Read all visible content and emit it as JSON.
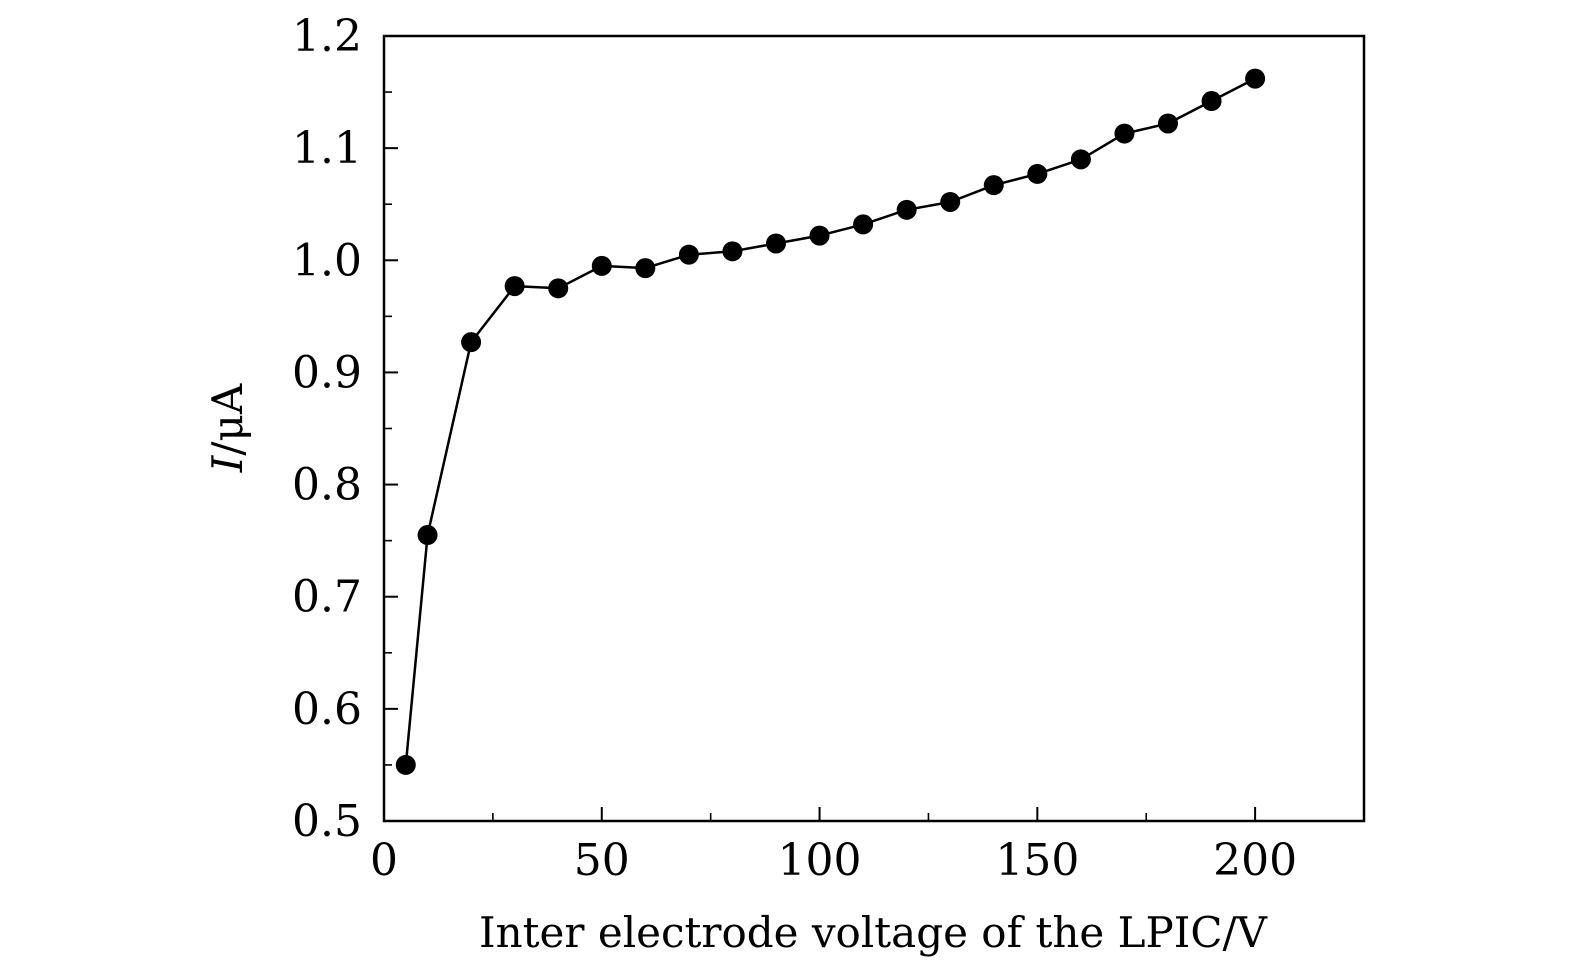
{
  "chart_data": {
    "type": "line",
    "title": "",
    "xlabel": "Inter electrode voltage of the LPIC/V",
    "ylabel": {
      "symbol": "I",
      "unit": "/μA"
    },
    "xlim": [
      0,
      225
    ],
    "ylim": [
      0.5,
      1.2
    ],
    "x_ticks": [
      0,
      50,
      100,
      150,
      200
    ],
    "x_tick_labels": [
      "0",
      "50",
      "100",
      "150",
      "200"
    ],
    "x_minor_ticks": [
      25,
      75,
      125,
      175,
      225
    ],
    "y_ticks": [
      0.5,
      0.6,
      0.7,
      0.8,
      0.9,
      1.0,
      1.1,
      1.2
    ],
    "y_tick_labels": [
      "0.5",
      "0.6",
      "0.7",
      "0.8",
      "0.9",
      "1.0",
      "1.1",
      "1.2"
    ],
    "y_minor_ticks": [
      0.55,
      0.65,
      0.75,
      0.85,
      0.95,
      1.05,
      1.15
    ],
    "grid": false,
    "legend": false,
    "series": [
      {
        "x": [
          5,
          10,
          20,
          30,
          40,
          50,
          60,
          70,
          80,
          90,
          100,
          110,
          120,
          130,
          140,
          150,
          160,
          170,
          180,
          190,
          200
        ],
        "y": [
          0.55,
          0.755,
          0.927,
          0.977,
          0.975,
          0.995,
          0.993,
          1.005,
          1.008,
          1.015,
          1.022,
          1.032,
          1.045,
          1.052,
          1.067,
          1.077,
          1.09,
          1.113,
          1.122,
          1.142,
          1.162
        ],
        "color": "#000000",
        "marker": "filled-circle"
      }
    ]
  }
}
